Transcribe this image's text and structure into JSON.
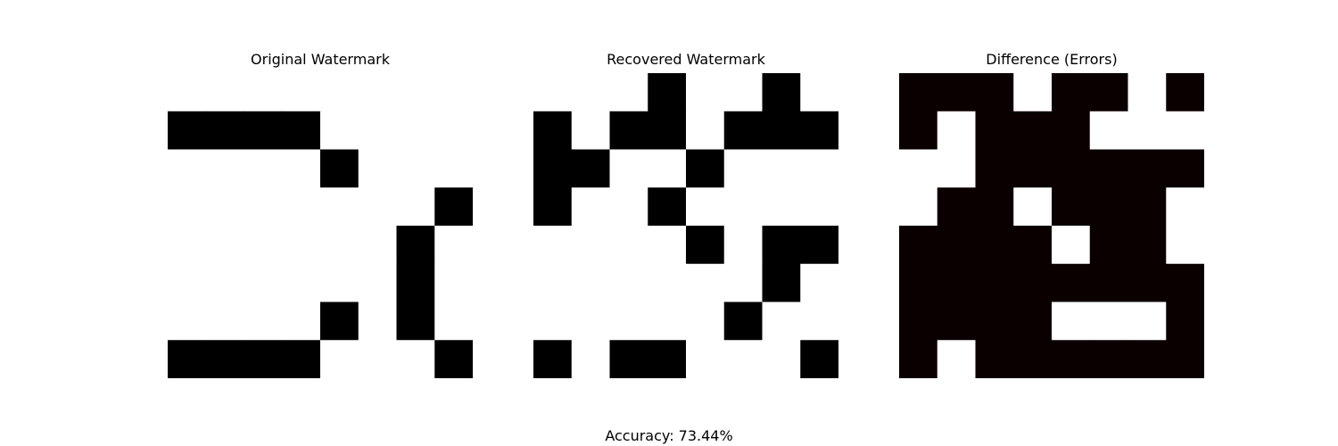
{
  "chart_data": {
    "type": "heatmap",
    "panels": [
      {
        "title": "Original Watermark",
        "cmap": "gray",
        "grid": [
          [
            0,
            0,
            0,
            0,
            0,
            0,
            0,
            0
          ],
          [
            1,
            1,
            1,
            1,
            0,
            0,
            0,
            0
          ],
          [
            0,
            0,
            0,
            0,
            1,
            0,
            0,
            0
          ],
          [
            0,
            0,
            0,
            0,
            0,
            0,
            0,
            1
          ],
          [
            0,
            0,
            0,
            0,
            0,
            0,
            1,
            0
          ],
          [
            0,
            0,
            0,
            0,
            0,
            0,
            1,
            0
          ],
          [
            0,
            0,
            0,
            0,
            1,
            0,
            1,
            0
          ],
          [
            1,
            1,
            1,
            1,
            0,
            0,
            0,
            1
          ]
        ]
      },
      {
        "title": "Recovered Watermark",
        "cmap": "gray",
        "grid": [
          [
            0,
            0,
            0,
            1,
            0,
            0,
            1,
            0
          ],
          [
            1,
            0,
            1,
            1,
            0,
            1,
            1,
            1
          ],
          [
            1,
            1,
            0,
            0,
            1,
            0,
            0,
            0
          ],
          [
            1,
            0,
            0,
            1,
            0,
            0,
            0,
            0
          ],
          [
            0,
            0,
            0,
            0,
            1,
            0,
            1,
            1
          ],
          [
            0,
            0,
            0,
            0,
            0,
            0,
            1,
            0
          ],
          [
            0,
            0,
            0,
            0,
            0,
            1,
            0,
            0
          ],
          [
            1,
            0,
            1,
            1,
            0,
            0,
            0,
            1
          ]
        ]
      },
      {
        "title": "Difference (Errors)",
        "cmap": "hot",
        "grid": [
          [
            1,
            1,
            1,
            0,
            1,
            1,
            0,
            1
          ],
          [
            1,
            0,
            1,
            1,
            1,
            0,
            0,
            0
          ],
          [
            0,
            0,
            1,
            1,
            1,
            1,
            1,
            1
          ],
          [
            0,
            1,
            1,
            0,
            1,
            1,
            1,
            0
          ],
          [
            1,
            1,
            1,
            1,
            0,
            1,
            1,
            0
          ],
          [
            1,
            1,
            1,
            1,
            1,
            1,
            1,
            1
          ],
          [
            1,
            1,
            1,
            1,
            0,
            0,
            0,
            1
          ],
          [
            1,
            0,
            1,
            1,
            1,
            1,
            1,
            1
          ]
        ]
      }
    ],
    "colors": {
      "gray_on": "#000000",
      "gray_off": "#ffffff",
      "hot_on": "#0b0000",
      "hot_off": "#ffffff"
    },
    "accuracy_label": "Accuracy: 73.44%"
  }
}
